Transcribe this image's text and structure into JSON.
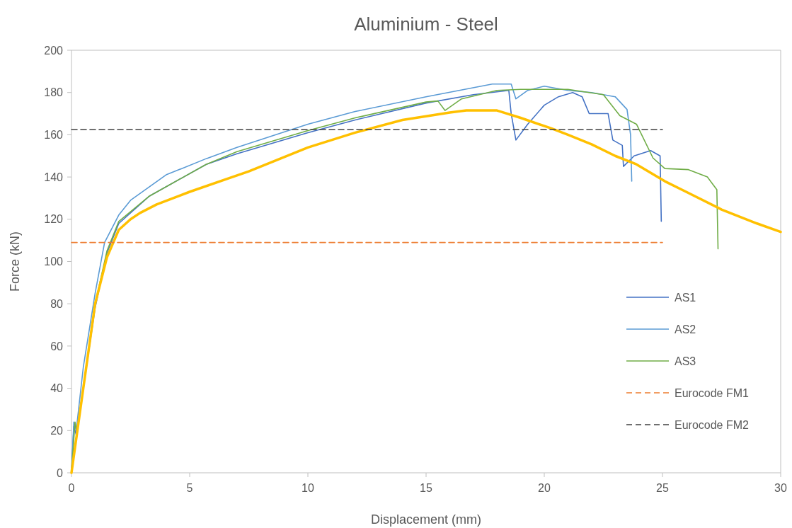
{
  "chart_data": {
    "type": "line",
    "title": "Aluminium - Steel",
    "xlabel": "Displacement (mm)",
    "ylabel": "Force (kN)",
    "xlim": [
      0,
      30
    ],
    "xticks": [
      0,
      5,
      10,
      15,
      20,
      25,
      30
    ],
    "ylim": [
      0,
      200
    ],
    "yticks": [
      0,
      20,
      40,
      60,
      80,
      100,
      120,
      140,
      160,
      180,
      200
    ],
    "grid": false,
    "legend": "bottom right",
    "marker": "none",
    "series": [
      {
        "name": "AS1",
        "color": "#4472c4",
        "line_style": "solid",
        "x": [
          0,
          0.1,
          0.2,
          0.5,
          1,
          1.5,
          2,
          3.3,
          5.7,
          7,
          10,
          12,
          15,
          17,
          18.5,
          18.6,
          18.8,
          19.3,
          20,
          20.6,
          21.2,
          21.6,
          21.9,
          22.7,
          22.9,
          23.3,
          23.35,
          23.8,
          24.5,
          24.9,
          24.95
        ],
        "values": [
          0,
          22,
          18,
          40,
          78,
          104,
          118,
          131,
          146,
          151,
          161,
          167,
          175,
          179,
          181,
          170,
          157.5,
          165,
          174,
          178,
          180,
          178,
          170,
          170,
          157.5,
          155,
          145,
          150,
          152.5,
          150,
          119
        ]
      },
      {
        "name": "AS2",
        "color": "#5b9bd5",
        "line_style": "solid",
        "x": [
          0,
          0.1,
          0.2,
          0.5,
          1,
          1.4,
          2,
          2.5,
          4,
          5.7,
          7,
          10,
          12,
          15,
          17.8,
          18.6,
          18.8,
          19.3,
          20,
          21,
          22,
          23,
          23.5,
          23.65,
          23.7
        ],
        "values": [
          0,
          24,
          20,
          50,
          85,
          109,
          122,
          129,
          141,
          148.7,
          154,
          165,
          171,
          178,
          184,
          184,
          177,
          181,
          183,
          181,
          180,
          178,
          172,
          160,
          138
        ]
      },
      {
        "name": "AS3",
        "color": "#70ad47",
        "line_style": "solid",
        "x": [
          0,
          0.15,
          0.25,
          0.5,
          1,
          1.5,
          2,
          3.3,
          5.7,
          7,
          10,
          12,
          15,
          15.5,
          15.8,
          16.5,
          18,
          19,
          21,
          22.5,
          23.2,
          23.9,
          24.6,
          25.1,
          26.1,
          26.9,
          27.3,
          27.35
        ],
        "values": [
          0,
          24,
          18,
          null,
          80,
          105,
          119,
          131,
          146,
          152,
          162,
          168,
          175.5,
          176,
          171.5,
          177,
          181,
          181.5,
          181.5,
          179,
          169,
          165,
          149,
          144,
          143.5,
          140,
          134,
          106
        ]
      },
      {
        "color": "#ffc000",
        "line_style": "solid",
        "x": [
          0,
          0.5,
          1,
          1.5,
          1.77,
          2,
          2.5,
          2.9,
          3.6,
          5,
          7.5,
          10,
          12,
          14,
          16,
          16.7,
          18,
          19,
          20.3,
          21,
          22,
          23,
          23.9,
          25.1,
          26,
          27.5,
          29,
          30
        ],
        "values": [
          0,
          40,
          80,
          102,
          109,
          115,
          120,
          123,
          127,
          133,
          142.7,
          154,
          161,
          167,
          170.5,
          171.5,
          171.5,
          168,
          163,
          160,
          155.5,
          150,
          146,
          138,
          133,
          124.6,
          118,
          114
        ]
      },
      {
        "name": "Eurocode FM1",
        "color": "#ed7d31",
        "line_style": "dashed",
        "x": [
          0,
          25
        ],
        "values": [
          109,
          109
        ]
      },
      {
        "name": "Eurocode FM2",
        "color": "#404040",
        "line_style": "dashed",
        "x": [
          0,
          25
        ],
        "values": [
          162.5,
          162.5
        ]
      }
    ]
  }
}
